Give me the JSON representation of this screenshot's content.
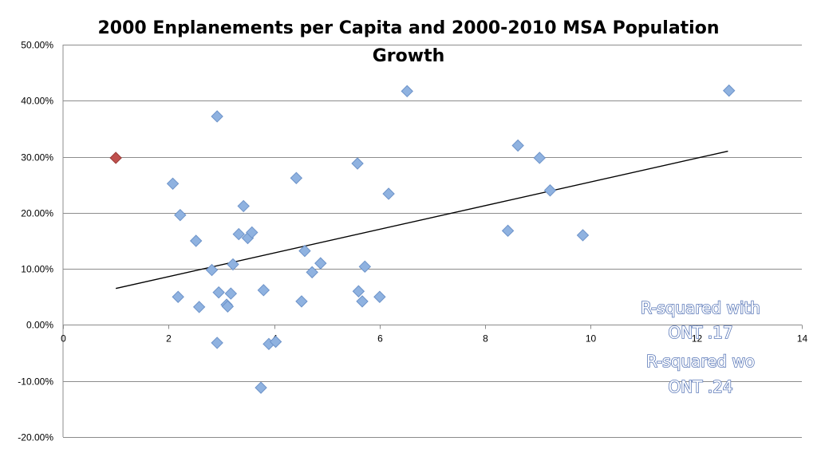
{
  "chart_data": {
    "type": "scatter",
    "title_lines": [
      "2000 Enplanements per Capita and 2000-2010 MSA Population",
      "Growth"
    ],
    "xlabel": "",
    "ylabel": "",
    "xlim": [
      0,
      14
    ],
    "ylim": [
      -0.2,
      0.5
    ],
    "x_ticks": [
      0,
      2,
      4,
      6,
      8,
      10,
      12,
      14
    ],
    "y_ticks": [
      {
        "value": 0.5,
        "label": "50.00%"
      },
      {
        "value": 0.4,
        "label": "40.00%"
      },
      {
        "value": 0.3,
        "label": "30.00%"
      },
      {
        "value": 0.2,
        "label": "20.00%"
      },
      {
        "value": 0.1,
        "label": "10.00%"
      },
      {
        "value": 0.0,
        "label": "0.00%"
      },
      {
        "value": -0.1,
        "label": "-10.00%"
      },
      {
        "value": -0.2,
        "label": "-20.00%"
      }
    ],
    "grid": "horizontal",
    "colors": {
      "points": "#8fb2e0",
      "points_stroke": "#6d93c9",
      "highlight": "#c0504d",
      "trendline": "#000000",
      "gridline": "#8c8c8c"
    },
    "highlight_point": {
      "x": 1.0,
      "y": 0.298
    },
    "points": [
      {
        "x": 2.08,
        "y": 0.252
      },
      {
        "x": 2.22,
        "y": 0.196
      },
      {
        "x": 2.18,
        "y": 0.05
      },
      {
        "x": 2.52,
        "y": 0.15
      },
      {
        "x": 2.58,
        "y": 0.032
      },
      {
        "x": 2.82,
        "y": 0.098
      },
      {
        "x": 2.92,
        "y": 0.372
      },
      {
        "x": 2.95,
        "y": 0.058
      },
      {
        "x": 2.92,
        "y": -0.032
      },
      {
        "x": 3.1,
        "y": 0.036
      },
      {
        "x": 3.12,
        "y": 0.033
      },
      {
        "x": 3.18,
        "y": 0.056
      },
      {
        "x": 3.22,
        "y": 0.108
      },
      {
        "x": 3.33,
        "y": 0.162
      },
      {
        "x": 3.42,
        "y": 0.212
      },
      {
        "x": 3.5,
        "y": 0.155
      },
      {
        "x": 3.58,
        "y": 0.165
      },
      {
        "x": 3.75,
        "y": -0.112
      },
      {
        "x": 3.8,
        "y": 0.062
      },
      {
        "x": 3.9,
        "y": -0.034
      },
      {
        "x": 4.03,
        "y": -0.03
      },
      {
        "x": 4.42,
        "y": 0.262
      },
      {
        "x": 4.52,
        "y": 0.042
      },
      {
        "x": 4.58,
        "y": 0.132
      },
      {
        "x": 4.72,
        "y": 0.094
      },
      {
        "x": 4.88,
        "y": 0.11
      },
      {
        "x": 5.58,
        "y": 0.288
      },
      {
        "x": 5.6,
        "y": 0.06
      },
      {
        "x": 5.67,
        "y": 0.042
      },
      {
        "x": 5.72,
        "y": 0.104
      },
      {
        "x": 6.0,
        "y": 0.05
      },
      {
        "x": 6.17,
        "y": 0.234
      },
      {
        "x": 6.52,
        "y": 0.417
      },
      {
        "x": 8.43,
        "y": 0.168
      },
      {
        "x": 8.62,
        "y": 0.32
      },
      {
        "x": 9.03,
        "y": 0.298
      },
      {
        "x": 9.23,
        "y": 0.24
      },
      {
        "x": 9.85,
        "y": 0.16
      },
      {
        "x": 12.62,
        "y": 0.418
      }
    ],
    "trendline": {
      "x1": 1.0,
      "y1": 0.065,
      "x2": 12.6,
      "y2": 0.31
    },
    "annotation_lines": [
      "R-squared with",
      "ONT .17",
      "R-squared wo",
      "ONT .24"
    ]
  }
}
